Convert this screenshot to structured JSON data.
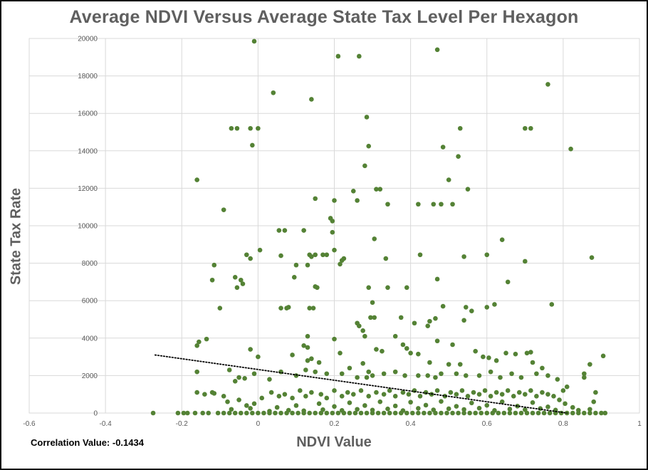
{
  "chart_data": {
    "type": "scatter",
    "title": "Average NDVI Versus Average State Tax Level Per Hexagon",
    "xlabel": "NDVI Value",
    "ylabel": "State Tax Rate",
    "xlim": [
      -0.6,
      1
    ],
    "ylim": [
      0,
      20000
    ],
    "xticks": [
      -0.6,
      -0.4,
      -0.2,
      0,
      0.2,
      0.4,
      0.6,
      0.8,
      1
    ],
    "yticks": [
      0,
      2000,
      4000,
      6000,
      8000,
      10000,
      12000,
      14000,
      16000,
      18000,
      20000
    ],
    "grid": true,
    "point_color": "#548235",
    "trendline": {
      "style": "dotted",
      "color": "#000000",
      "x": [
        -0.27,
        0.81
      ],
      "y": [
        3100,
        0
      ]
    },
    "annotation": "Correlation Value: -0.1434",
    "points": [
      [
        -0.01,
        19850
      ],
      [
        0.04,
        17100
      ],
      [
        0.14,
        16750
      ],
      [
        0.21,
        19050
      ],
      [
        0.265,
        19050
      ],
      [
        0.47,
        19400
      ],
      [
        0.285,
        15800
      ],
      [
        0.29,
        14250
      ],
      [
        0.28,
        13200
      ],
      [
        0.76,
        17550
      ],
      [
        0.82,
        14100
      ],
      [
        -0.16,
        12450
      ],
      [
        -0.07,
        15200
      ],
      [
        -0.055,
        15200
      ],
      [
        -0.02,
        15200
      ],
      [
        0.0,
        15200
      ],
      [
        -0.015,
        14300
      ],
      [
        0.53,
        15200
      ],
      [
        0.485,
        14200
      ],
      [
        0.525,
        13700
      ],
      [
        0.7,
        15200
      ],
      [
        0.715,
        15200
      ],
      [
        0.25,
        11850
      ],
      [
        0.26,
        11350
      ],
      [
        0.2,
        11350
      ],
      [
        0.15,
        11450
      ],
      [
        0.31,
        11950
      ],
      [
        0.32,
        11950
      ],
      [
        0.34,
        11150
      ],
      [
        0.42,
        11150
      ],
      [
        0.46,
        11150
      ],
      [
        0.48,
        11150
      ],
      [
        0.5,
        12450
      ],
      [
        0.55,
        11950
      ],
      [
        -0.09,
        10850
      ],
      [
        0.055,
        9750
      ],
      [
        0.07,
        9750
      ],
      [
        0.12,
        9750
      ],
      [
        0.19,
        10400
      ],
      [
        0.195,
        10250
      ],
      [
        0.195,
        9650
      ],
      [
        0.2,
        8700
      ],
      [
        0.215,
        7950
      ],
      [
        0.225,
        8250
      ],
      [
        0.305,
        9300
      ],
      [
        0.51,
        11150
      ],
      [
        0.64,
        9250
      ],
      [
        0.6,
        8450
      ],
      [
        0.7,
        8100
      ],
      [
        0.875,
        8300
      ],
      [
        0.425,
        8450
      ],
      [
        0.54,
        8350
      ],
      [
        -0.115,
        7900
      ],
      [
        -0.03,
        8450
      ],
      [
        -0.02,
        8250
      ],
      [
        0.005,
        8700
      ],
      [
        0.06,
        8400
      ],
      [
        0.1,
        7900
      ],
      [
        0.14,
        8350
      ],
      [
        0.135,
        8450
      ],
      [
        0.15,
        8450
      ],
      [
        0.17,
        8450
      ],
      [
        0.18,
        8450
      ],
      [
        0.22,
        8150
      ],
      [
        0.335,
        8250
      ],
      [
        0.13,
        7900
      ],
      [
        0.47,
        7150
      ],
      [
        0.655,
        7000
      ],
      [
        0.095,
        7250
      ],
      [
        0.15,
        6750
      ],
      [
        0.155,
        6700
      ],
      [
        0.29,
        6700
      ],
      [
        0.34,
        6700
      ],
      [
        0.39,
        6700
      ],
      [
        -0.06,
        7250
      ],
      [
        -0.055,
        6700
      ],
      [
        -0.045,
        7100
      ],
      [
        -0.12,
        7100
      ],
      [
        -0.04,
        6900
      ],
      [
        -0.1,
        5600
      ],
      [
        0.06,
        5600
      ],
      [
        0.075,
        5600
      ],
      [
        0.08,
        5650
      ],
      [
        0.135,
        5600
      ],
      [
        0.145,
        5600
      ],
      [
        0.3,
        5900
      ],
      [
        0.295,
        5100
      ],
      [
        0.305,
        5100
      ],
      [
        0.375,
        5100
      ],
      [
        0.41,
        4800
      ],
      [
        0.445,
        4650
      ],
      [
        0.45,
        4900
      ],
      [
        0.465,
        5050
      ],
      [
        0.485,
        5700
      ],
      [
        0.54,
        4950
      ],
      [
        0.545,
        5650
      ],
      [
        0.56,
        5450
      ],
      [
        0.6,
        5650
      ],
      [
        0.62,
        5800
      ],
      [
        0.77,
        5800
      ],
      [
        0.26,
        4800
      ],
      [
        0.265,
        4650
      ],
      [
        0.275,
        4400
      ],
      [
        0.28,
        4100
      ],
      [
        0.36,
        4100
      ],
      [
        0.47,
        3850
      ],
      [
        0.13,
        4100
      ],
      [
        0.13,
        3500
      ],
      [
        0.2,
        3950
      ],
      [
        -0.135,
        3950
      ],
      [
        -0.155,
        3800
      ],
      [
        -0.16,
        3600
      ],
      [
        -0.02,
        3400
      ],
      [
        0.0,
        3000
      ],
      [
        0.09,
        3100
      ],
      [
        0.12,
        3600
      ],
      [
        0.13,
        2800
      ],
      [
        0.14,
        2900
      ],
      [
        0.16,
        2700
      ],
      [
        0.215,
        3200
      ],
      [
        0.275,
        2650
      ],
      [
        0.31,
        3400
      ],
      [
        0.325,
        3300
      ],
      [
        0.38,
        3650
      ],
      [
        0.39,
        3450
      ],
      [
        0.4,
        3200
      ],
      [
        0.42,
        3150
      ],
      [
        0.45,
        2700
      ],
      [
        0.5,
        2600
      ],
      [
        0.51,
        3650
      ],
      [
        0.53,
        2600
      ],
      [
        0.57,
        3300
      ],
      [
        0.59,
        3000
      ],
      [
        0.605,
        2950
      ],
      [
        0.625,
        2800
      ],
      [
        0.65,
        3200
      ],
      [
        0.675,
        3150
      ],
      [
        0.705,
        3200
      ],
      [
        0.715,
        3250
      ],
      [
        0.72,
        2700
      ],
      [
        0.745,
        2400
      ],
      [
        0.87,
        2600
      ],
      [
        0.905,
        3050
      ],
      [
        0.855,
        2100
      ],
      [
        0.855,
        1900
      ],
      [
        0.885,
        1100
      ],
      [
        0.88,
        600
      ],
      [
        0.87,
        200
      ],
      [
        -0.16,
        2200
      ],
      [
        -0.12,
        1100
      ],
      [
        -0.075,
        2300
      ],
      [
        -0.06,
        1700
      ],
      [
        -0.05,
        1900
      ],
      [
        -0.035,
        1850
      ],
      [
        -0.01,
        2100
      ],
      [
        0.03,
        1800
      ],
      [
        0.06,
        2200
      ],
      [
        0.1,
        2000
      ],
      [
        0.125,
        2300
      ],
      [
        0.15,
        2200
      ],
      [
        0.18,
        2100
      ],
      [
        0.22,
        2100
      ],
      [
        0.24,
        2400
      ],
      [
        0.26,
        1900
      ],
      [
        0.285,
        1900
      ],
      [
        0.29,
        2200
      ],
      [
        0.3,
        2000
      ],
      [
        0.33,
        2100
      ],
      [
        0.36,
        2200
      ],
      [
        0.385,
        2000
      ],
      [
        0.42,
        2000
      ],
      [
        0.445,
        2000
      ],
      [
        0.465,
        1900
      ],
      [
        0.48,
        2100
      ],
      [
        0.52,
        2100
      ],
      [
        0.545,
        2000
      ],
      [
        0.58,
        2000
      ],
      [
        0.61,
        2200
      ],
      [
        0.635,
        1900
      ],
      [
        0.665,
        2100
      ],
      [
        0.69,
        1900
      ],
      [
        0.73,
        2100
      ],
      [
        0.76,
        2000
      ],
      [
        0.785,
        1800
      ],
      [
        0.8,
        1200
      ],
      [
        0.81,
        1400
      ],
      [
        -0.16,
        1100
      ],
      [
        -0.14,
        1000
      ],
      [
        -0.115,
        1050
      ],
      [
        -0.09,
        900
      ],
      [
        -0.08,
        600
      ],
      [
        -0.05,
        700
      ],
      [
        -0.03,
        400
      ],
      [
        -0.01,
        500
      ],
      [
        0.01,
        800
      ],
      [
        0.035,
        1100
      ],
      [
        0.055,
        900
      ],
      [
        0.07,
        1000
      ],
      [
        0.09,
        800
      ],
      [
        0.11,
        1200
      ],
      [
        0.125,
        900
      ],
      [
        0.14,
        1100
      ],
      [
        0.165,
        1000
      ],
      [
        0.18,
        800
      ],
      [
        0.2,
        1200
      ],
      [
        0.22,
        900
      ],
      [
        0.235,
        1100
      ],
      [
        0.25,
        1000
      ],
      [
        0.27,
        1200
      ],
      [
        0.29,
        900
      ],
      [
        0.31,
        1100
      ],
      [
        0.33,
        1000
      ],
      [
        0.345,
        1200
      ],
      [
        0.36,
        900
      ],
      [
        0.38,
        1100
      ],
      [
        0.395,
        1000
      ],
      [
        0.41,
        1200
      ],
      [
        0.425,
        900
      ],
      [
        0.44,
        1100
      ],
      [
        0.455,
        1000
      ],
      [
        0.47,
        1200
      ],
      [
        0.49,
        900
      ],
      [
        0.505,
        1100
      ],
      [
        0.52,
        1000
      ],
      [
        0.535,
        1200
      ],
      [
        0.55,
        900
      ],
      [
        0.565,
        1100
      ],
      [
        0.58,
        1000
      ],
      [
        0.595,
        1200
      ],
      [
        0.61,
        900
      ],
      [
        0.625,
        1100
      ],
      [
        0.64,
        1000
      ],
      [
        0.655,
        1200
      ],
      [
        0.67,
        900
      ],
      [
        0.685,
        1100
      ],
      [
        0.7,
        1000
      ],
      [
        0.715,
        1200
      ],
      [
        0.73,
        900
      ],
      [
        0.745,
        1100
      ],
      [
        0.76,
        1000
      ],
      [
        0.775,
        900
      ],
      [
        0.79,
        700
      ],
      [
        0.805,
        500
      ],
      [
        0.825,
        300
      ],
      [
        0.84,
        150
      ],
      [
        -0.275,
        0
      ],
      [
        -0.21,
        0
      ],
      [
        -0.195,
        0
      ],
      [
        -0.185,
        0
      ],
      [
        -0.165,
        0
      ],
      [
        -0.145,
        0
      ],
      [
        -0.13,
        0
      ],
      [
        -0.105,
        0
      ],
      [
        -0.09,
        0
      ],
      [
        -0.075,
        0
      ],
      [
        -0.06,
        0
      ],
      [
        -0.045,
        0
      ],
      [
        -0.03,
        0
      ],
      [
        -0.015,
        0
      ],
      [
        0.0,
        0
      ],
      [
        0.015,
        0
      ],
      [
        0.03,
        0
      ],
      [
        0.045,
        0
      ],
      [
        0.06,
        0
      ],
      [
        0.075,
        0
      ],
      [
        0.09,
        0
      ],
      [
        0.105,
        0
      ],
      [
        0.12,
        0
      ],
      [
        0.135,
        0
      ],
      [
        0.15,
        0
      ],
      [
        0.165,
        0
      ],
      [
        0.18,
        0
      ],
      [
        0.195,
        0
      ],
      [
        0.21,
        0
      ],
      [
        0.225,
        0
      ],
      [
        0.24,
        0
      ],
      [
        0.255,
        0
      ],
      [
        0.27,
        0
      ],
      [
        0.285,
        0
      ],
      [
        0.3,
        0
      ],
      [
        0.315,
        0
      ],
      [
        0.33,
        0
      ],
      [
        0.345,
        0
      ],
      [
        0.36,
        0
      ],
      [
        0.375,
        0
      ],
      [
        0.39,
        0
      ],
      [
        0.405,
        0
      ],
      [
        0.42,
        0
      ],
      [
        0.435,
        0
      ],
      [
        0.45,
        0
      ],
      [
        0.465,
        0
      ],
      [
        0.48,
        0
      ],
      [
        0.495,
        0
      ],
      [
        0.51,
        0
      ],
      [
        0.525,
        0
      ],
      [
        0.54,
        0
      ],
      [
        0.555,
        0
      ],
      [
        0.57,
        0
      ],
      [
        0.585,
        0
      ],
      [
        0.6,
        0
      ],
      [
        0.615,
        0
      ],
      [
        0.63,
        0
      ],
      [
        0.645,
        0
      ],
      [
        0.66,
        0
      ],
      [
        0.675,
        0
      ],
      [
        0.69,
        0
      ],
      [
        0.705,
        0
      ],
      [
        0.72,
        0
      ],
      [
        0.735,
        0
      ],
      [
        0.75,
        0
      ],
      [
        0.765,
        0
      ],
      [
        0.78,
        0
      ],
      [
        0.795,
        0
      ],
      [
        0.81,
        0
      ],
      [
        0.825,
        0
      ],
      [
        0.84,
        0
      ],
      [
        0.855,
        0
      ],
      [
        0.87,
        0
      ],
      [
        0.885,
        0
      ],
      [
        0.9,
        0
      ],
      [
        0.91,
        0
      ],
      [
        0.03,
        100
      ],
      [
        0.08,
        150
      ],
      [
        0.12,
        120
      ],
      [
        0.17,
        180
      ],
      [
        0.22,
        140
      ],
      [
        0.26,
        200
      ],
      [
        0.3,
        160
      ],
      [
        0.34,
        220
      ],
      [
        0.38,
        130
      ],
      [
        0.42,
        250
      ],
      [
        0.46,
        170
      ],
      [
        0.5,
        230
      ],
      [
        0.54,
        190
      ],
      [
        0.58,
        260
      ],
      [
        0.62,
        140
      ],
      [
        0.66,
        210
      ],
      [
        0.7,
        180
      ],
      [
        0.74,
        240
      ],
      [
        0.78,
        160
      ],
      [
        0.2,
        350
      ],
      [
        0.28,
        400
      ],
      [
        0.36,
        380
      ],
      [
        0.44,
        420
      ],
      [
        0.52,
        360
      ],
      [
        0.6,
        410
      ],
      [
        0.68,
        370
      ],
      [
        0.76,
        330
      ],
      [
        0.24,
        550
      ],
      [
        0.32,
        600
      ],
      [
        0.4,
        580
      ],
      [
        0.48,
        620
      ],
      [
        0.56,
        540
      ],
      [
        0.64,
        600
      ],
      [
        0.72,
        560
      ],
      [
        0.16,
        500
      ],
      [
        0.1,
        400
      ],
      [
        0.05,
        300
      ],
      [
        -0.02,
        250
      ],
      [
        -0.07,
        200
      ]
    ]
  }
}
